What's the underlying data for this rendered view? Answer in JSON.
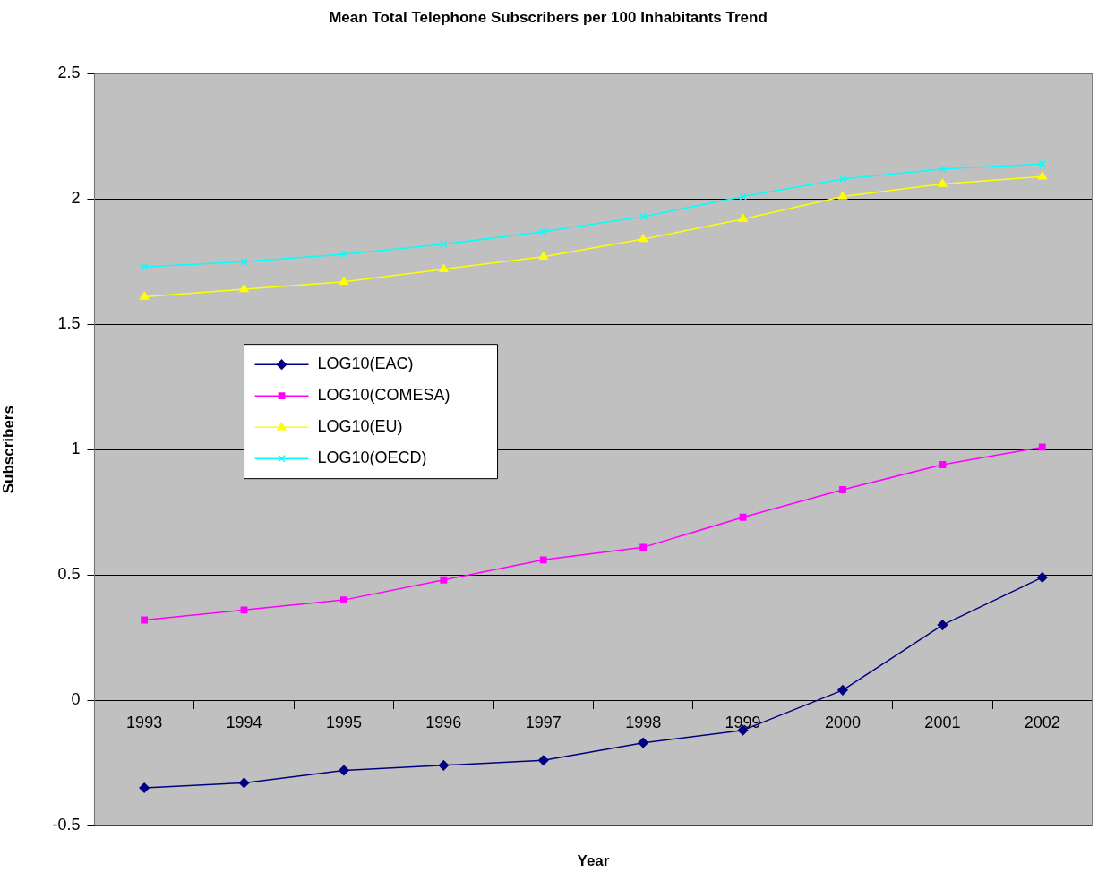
{
  "chart_data": {
    "type": "line",
    "title": "Mean Total Telephone Subscribers per 100 Inhabitants Trend",
    "xlabel": "Year",
    "ylabel": "Subscribers",
    "categories": [
      "1993",
      "1994",
      "1995",
      "1996",
      "1997",
      "1998",
      "1999",
      "2000",
      "2001",
      "2002"
    ],
    "series": [
      {
        "name": "LOG10(EAC)",
        "color": "#000080",
        "marker": "diamond",
        "values": [
          -0.35,
          -0.33,
          -0.28,
          -0.26,
          -0.24,
          -0.17,
          -0.12,
          0.04,
          0.3,
          0.49
        ]
      },
      {
        "name": "LOG10(COMESA)",
        "color": "#ff00ff",
        "marker": "square",
        "values": [
          0.32,
          0.36,
          0.4,
          0.48,
          0.56,
          0.61,
          0.73,
          0.84,
          0.94,
          1.01
        ]
      },
      {
        "name": "LOG10(EU)",
        "color": "#ffff00",
        "marker": "triangle",
        "values": [
          1.61,
          1.64,
          1.67,
          1.72,
          1.77,
          1.84,
          1.92,
          2.01,
          2.06,
          2.09
        ]
      },
      {
        "name": "LOG10(OECD)",
        "color": "#00ffff",
        "marker": "cross",
        "values": [
          1.73,
          1.75,
          1.78,
          1.82,
          1.87,
          1.93,
          2.01,
          2.08,
          2.12,
          2.14
        ]
      }
    ],
    "ylim": [
      -0.5,
      2.5
    ],
    "yticks": [
      -0.5,
      0,
      0.5,
      1,
      1.5,
      2,
      2.5
    ],
    "grid": "y",
    "legend": "left"
  }
}
